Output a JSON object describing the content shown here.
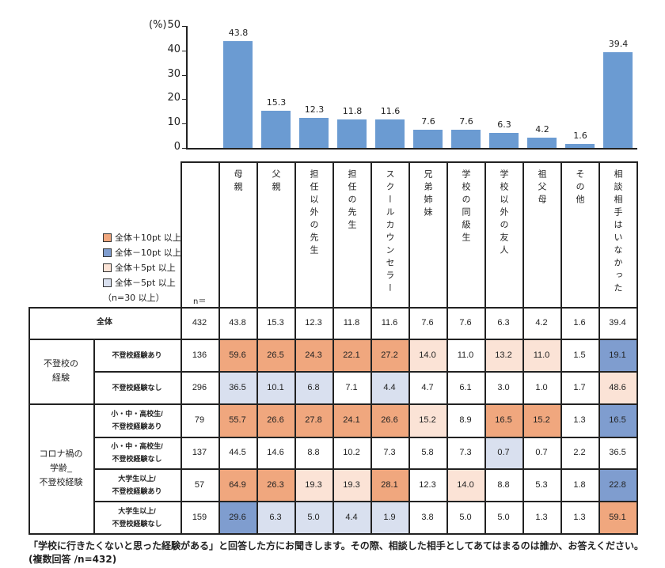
{
  "chart_data": {
    "type": "bar",
    "ylabel": "(%)",
    "ylim": [
      0,
      50
    ],
    "yticks": [
      0,
      10,
      20,
      30,
      40,
      50
    ],
    "categories": [
      "母親",
      "父親",
      "担任以外の先生",
      "担任の先生",
      "スクールカウンセラー",
      "兄弟姉妹",
      "学校の同級生",
      "学校以外の友人",
      "祖父母",
      "その他",
      "相談相手はいなかった"
    ],
    "values": [
      43.8,
      15.3,
      12.3,
      11.8,
      11.6,
      7.6,
      7.6,
      6.3,
      4.2,
      1.6,
      39.4
    ],
    "bar_color": "#6b9bd2"
  },
  "legend": {
    "items": [
      {
        "label": "全体＋10pt 以上",
        "color": "#f0a77e"
      },
      {
        "label": "全体－10pt 以上",
        "color": "#7f9dcf"
      },
      {
        "label": "全体＋5pt 以上",
        "color": "#fbe3d6"
      },
      {
        "label": "全体－5pt 以上",
        "color": "#d9e0ef"
      }
    ],
    "note": "（n=30 以上）"
  },
  "table": {
    "n_header": "n＝",
    "groups": [
      {
        "label": "",
        "rows": [
          0
        ]
      },
      {
        "label": "不登校の\n経験",
        "rows": [
          1,
          2
        ]
      },
      {
        "label": "コロナ禍の\n学齢_\n不登校経験",
        "rows": [
          3,
          4,
          5,
          6
        ]
      }
    ],
    "rows": [
      {
        "label": "全体",
        "n": "432",
        "values": [
          "43.8",
          "15.3",
          "12.3",
          "11.8",
          "11.6",
          "7.6",
          "7.6",
          "6.3",
          "4.2",
          "1.6",
          "39.4"
        ],
        "shade": [
          0,
          0,
          0,
          0,
          0,
          0,
          0,
          0,
          0,
          0,
          0
        ]
      },
      {
        "label": "不登校経験あり",
        "n": "136",
        "values": [
          "59.6",
          "26.5",
          "24.3",
          "22.1",
          "27.2",
          "14.0",
          "11.0",
          "13.2",
          "11.0",
          "1.5",
          "19.1"
        ],
        "shade": [
          1,
          1,
          1,
          1,
          1,
          3,
          0,
          3,
          3,
          0,
          2
        ]
      },
      {
        "label": "不登校経験なし",
        "n": "296",
        "values": [
          "36.5",
          "10.1",
          "6.8",
          "7.1",
          "4.4",
          "4.7",
          "6.1",
          "3.0",
          "1.0",
          "1.7",
          "48.6"
        ],
        "shade": [
          4,
          4,
          4,
          0,
          4,
          0,
          0,
          0,
          0,
          0,
          3
        ]
      },
      {
        "label": "小・中・高校生/\n不登校経験あり",
        "n": "79",
        "values": [
          "55.7",
          "26.6",
          "27.8",
          "24.1",
          "26.6",
          "15.2",
          "8.9",
          "16.5",
          "15.2",
          "1.3",
          "16.5"
        ],
        "shade": [
          1,
          1,
          1,
          1,
          1,
          3,
          0,
          1,
          1,
          0,
          2
        ]
      },
      {
        "label": "小・中・高校生/\n不登校経験なし",
        "n": "137",
        "values": [
          "44.5",
          "14.6",
          "8.8",
          "10.2",
          "7.3",
          "5.8",
          "7.3",
          "0.7",
          "0.7",
          "2.2",
          "36.5"
        ],
        "shade": [
          0,
          0,
          0,
          0,
          0,
          0,
          0,
          4,
          0,
          0,
          0
        ]
      },
      {
        "label": "大学生以上/\n不登校経験あり",
        "n": "57",
        "values": [
          "64.9",
          "26.3",
          "19.3",
          "19.3",
          "28.1",
          "12.3",
          "14.0",
          "8.8",
          "5.3",
          "1.8",
          "22.8"
        ],
        "shade": [
          1,
          1,
          3,
          3,
          1,
          0,
          3,
          0,
          0,
          0,
          2
        ]
      },
      {
        "label": "大学生以上/\n不登校経験なし",
        "n": "159",
        "values": [
          "29.6",
          "6.3",
          "5.0",
          "4.4",
          "1.9",
          "3.8",
          "5.0",
          "5.0",
          "1.3",
          "1.3",
          "59.1"
        ],
        "shade": [
          2,
          4,
          4,
          4,
          4,
          0,
          0,
          0,
          0,
          0,
          1
        ]
      }
    ]
  },
  "footer": {
    "line1": "「学校に行きたくないと思った経験がある」と回答した方にお聞きします。その際、相談した相手としてあてはまるのは誰か、お答えください。",
    "line2": "(複数回答 /n=432)"
  }
}
